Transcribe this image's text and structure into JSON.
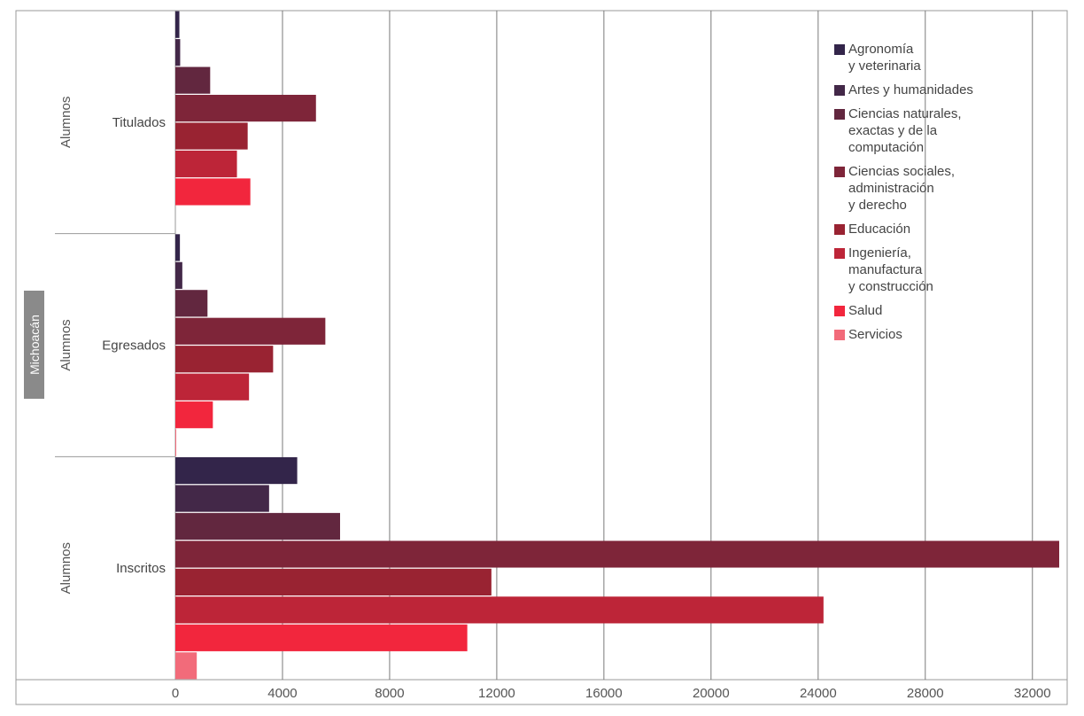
{
  "chart_data": {
    "type": "bar",
    "orientation": "horizontal",
    "region": "Michoacán",
    "groups": [
      {
        "label": "Titulados",
        "outer_label": "Alumnos"
      },
      {
        "label": "Egresados",
        "outer_label": "Alumnos"
      },
      {
        "label": "Inscritos",
        "outer_label": "Alumnos"
      }
    ],
    "series": [
      {
        "name": "Agronomía\ny veterinaria",
        "color": "#33254a",
        "values": [
          150,
          170,
          4550
        ]
      },
      {
        "name": "Artes y humanidades",
        "color": "#432848",
        "values": [
          180,
          260,
          3500
        ]
      },
      {
        "name": "Ciencias naturales,\nexactas y de la\ncomputación",
        "color": "#62273f",
        "values": [
          1300,
          1200,
          6150
        ]
      },
      {
        "name": "Ciencias sociales,\nadministración\ny derecho",
        "color": "#7e2539",
        "values": [
          5250,
          5600,
          33000
        ]
      },
      {
        "name": "Educación",
        "color": "#992332",
        "values": [
          2700,
          3650,
          11800
        ]
      },
      {
        "name": "Ingeniería,\nmanufactura\ny construcción",
        "color": "#bd2538",
        "values": [
          2300,
          2750,
          24200
        ]
      },
      {
        "name": "Salud",
        "color": "#f2263d",
        "values": [
          2800,
          1400,
          10900
        ]
      },
      {
        "name": "Servicios",
        "color": "#f26b7a",
        "values": [
          0,
          20,
          800
        ]
      }
    ],
    "xlim": [
      0,
      33000
    ],
    "xticks": [
      "0",
      "4000",
      "8000",
      "12000",
      "16000",
      "20000",
      "24000",
      "28000",
      "32000"
    ],
    "grid": "vertical",
    "legend_position": "top-right"
  }
}
